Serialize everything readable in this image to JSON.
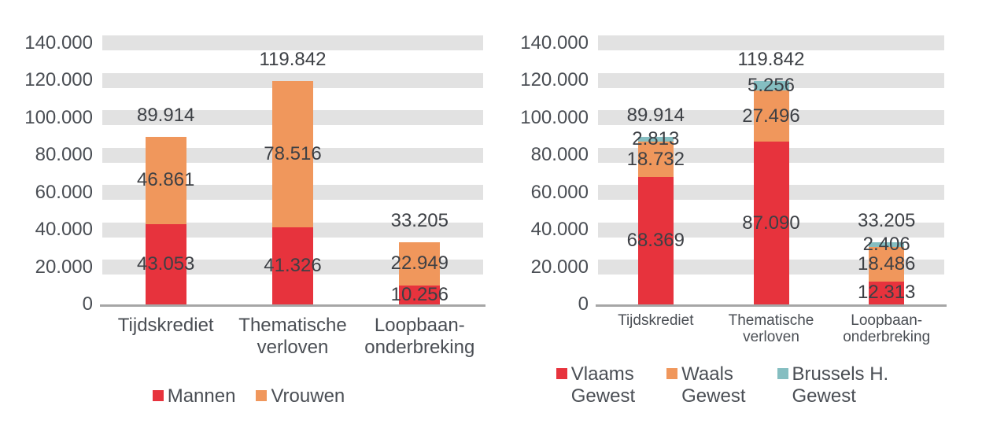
{
  "page": {
    "background": "#ffffff"
  },
  "colors": {
    "red": "#e7333d",
    "orange": "#f0975c",
    "teal": "#85bec1",
    "grid_band": "#e2e2e2",
    "axis_line": "#a6a6a6",
    "value_text": "#3d4045",
    "axis_text": "#4a4e54"
  },
  "chart_data": [
    {
      "type": "stacked-bar",
      "title": "",
      "categories": [
        "Tijdskrediet",
        "Thematische\nverloven",
        "Loopbaan-\nonderbreking"
      ],
      "y_tick_labels": [
        "140.000",
        "120.000",
        "100.000",
        "80.000",
        "60.000",
        "40.000",
        "20.000",
        "0"
      ],
      "y_tick_values": [
        140000,
        120000,
        100000,
        80000,
        60000,
        40000,
        20000,
        0
      ],
      "ylim": [
        0,
        144000
      ],
      "grid": "horizontal-bands",
      "legend_position": "bottom",
      "series": [
        {
          "name": "Mannen",
          "color": "#e7333d",
          "values": [
            43053,
            41326,
            10256
          ],
          "labels": [
            "43.053",
            "41.326",
            "10.256"
          ]
        },
        {
          "name": "Vrouwen",
          "color": "#f0975c",
          "values": [
            46861,
            78516,
            22949
          ],
          "labels": [
            "46.861",
            "78.516",
            "22.949"
          ]
        }
      ],
      "totals": {
        "values": [
          89914,
          119842,
          33205
        ],
        "labels": [
          "89.914",
          "119.842",
          "33.205"
        ]
      },
      "legend_entries": [
        "Mannen",
        "Vrouwen"
      ]
    },
    {
      "type": "stacked-bar",
      "title": "",
      "categories": [
        "Tijdskrediet",
        "Thematische\nverloven",
        "Loopbaan-\nonderbreking"
      ],
      "y_tick_labels": [
        "140.000",
        "120.000",
        "100.000",
        "80.000",
        "60.000",
        "40.000",
        "20.000",
        "0"
      ],
      "y_tick_values": [
        140000,
        120000,
        100000,
        80000,
        60000,
        40000,
        20000,
        0
      ],
      "ylim": [
        0,
        144000
      ],
      "grid": "horizontal-bands",
      "legend_position": "bottom",
      "series": [
        {
          "name": "Vlaams Gewest",
          "color": "#e7333d",
          "values": [
            68369,
            87090,
            12313
          ],
          "labels": [
            "68.369",
            "87.090",
            "12.313"
          ]
        },
        {
          "name": "Waals Gewest",
          "color": "#f0975c",
          "values": [
            18732,
            27496,
            18486
          ],
          "labels": [
            "18.732",
            "27.496",
            "18.486"
          ]
        },
        {
          "name": "Brussels H. Gewest",
          "color": "#85bec1",
          "values": [
            2813,
            5256,
            2406
          ],
          "labels": [
            "2.813",
            "5.256",
            "2.406"
          ]
        }
      ],
      "totals": {
        "values": [
          89914,
          119842,
          33205
        ],
        "labels": [
          "89.914",
          "119.842",
          "33.205"
        ]
      },
      "legend_entries": [
        "Vlaams\nGewest",
        "Waals\nGewest",
        "Brussels H.\nGewest"
      ]
    }
  ]
}
